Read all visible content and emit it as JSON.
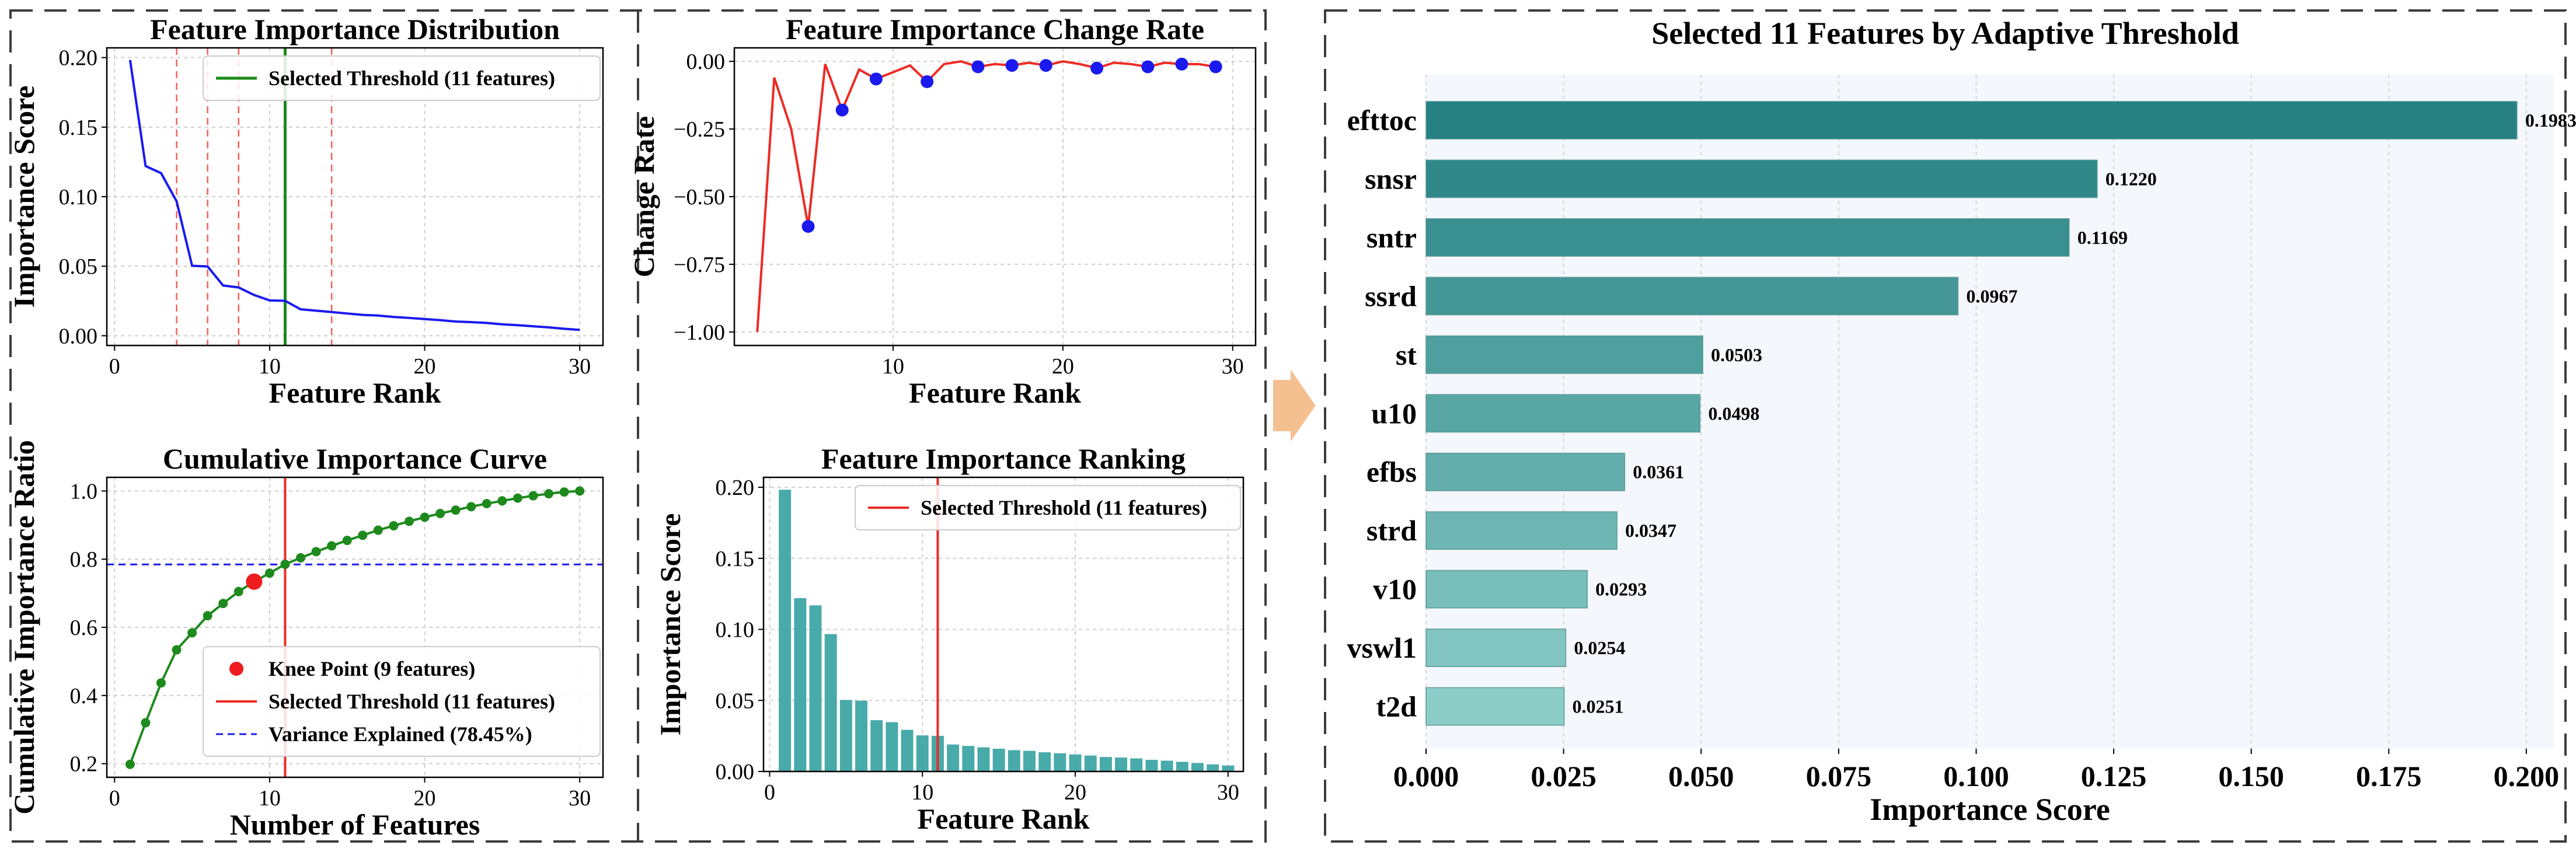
{
  "colors": {
    "panel_border": "#3c3c3c",
    "arrow": "#f5c08f",
    "threshold_green": "#1a8a1a",
    "threshold_red": "#ee2a24",
    "line_blue": "#1a1aee",
    "bar_teal": "#3aa3a3",
    "cum_green": "#1e8a1e",
    "knee_red": "#ee1c1c",
    "variance_blue": "#1a1aee",
    "panel_bg_right": "#f4f7fb"
  },
  "chart_data": [
    {
      "id": "dist",
      "type": "line",
      "title": "Feature Importance Distribution",
      "xlabel": "Feature Rank",
      "ylabel": "Importance Score",
      "xlim": [
        -0.5,
        31.5
      ],
      "ylim": [
        -0.007,
        0.207
      ],
      "xticks": [
        0,
        10,
        20,
        30
      ],
      "yticks": [
        0.0,
        0.05,
        0.1,
        0.15,
        0.2
      ],
      "ytick_labels": [
        "0.00",
        "0.05",
        "0.10",
        "0.15",
        "0.20"
      ],
      "grid": true,
      "legend": {
        "position": "top-right",
        "entries": [
          "Selected Threshold (11 features)"
        ]
      },
      "x": [
        1,
        2,
        3,
        4,
        5,
        6,
        7,
        8,
        9,
        10,
        11,
        12,
        13,
        14,
        15,
        16,
        17,
        18,
        19,
        20,
        21,
        22,
        23,
        24,
        25,
        26,
        27,
        28,
        29,
        30
      ],
      "values": [
        0.1983,
        0.122,
        0.1169,
        0.0967,
        0.0503,
        0.0498,
        0.0361,
        0.0347,
        0.0293,
        0.0254,
        0.0251,
        0.019,
        0.018,
        0.017,
        0.016,
        0.015,
        0.0145,
        0.0135,
        0.0128,
        0.012,
        0.0112,
        0.0102,
        0.0098,
        0.0092,
        0.0082,
        0.0076,
        0.0068,
        0.006,
        0.005,
        0.0042
      ],
      "dashed_verticals": [
        4,
        6,
        8,
        14
      ],
      "threshold": 11
    },
    {
      "id": "change",
      "type": "line",
      "title": "Feature Importance Change Rate",
      "xlabel": "Feature Rank",
      "ylabel": "Change Rate",
      "xlim": [
        0.65,
        31.35
      ],
      "ylim": [
        -1.05,
        0.05
      ],
      "xticks": [
        10,
        20,
        30
      ],
      "yticks": [
        -1.0,
        -0.75,
        -0.5,
        -0.25,
        0.0
      ],
      "ytick_labels": [
        "−1.00",
        "−0.75",
        "−0.50",
        "−0.25",
        "0.00"
      ],
      "grid": true,
      "x": [
        2,
        3,
        4,
        5,
        6,
        7,
        8,
        9,
        10,
        11,
        12,
        13,
        14,
        15,
        16,
        17,
        18,
        19,
        20,
        21,
        22,
        23,
        24,
        25,
        26,
        27,
        28,
        29
      ],
      "values": [
        -1.0,
        -0.06,
        -0.25,
        -0.61,
        -0.01,
        -0.18,
        -0.03,
        -0.065,
        -0.04,
        -0.015,
        -0.075,
        -0.01,
        0.0,
        -0.02,
        -0.01,
        -0.015,
        -0.005,
        -0.015,
        0.0,
        -0.01,
        -0.025,
        -0.005,
        -0.01,
        -0.02,
        -0.005,
        -0.01,
        -0.01,
        -0.02
      ],
      "marked_x": [
        5,
        7,
        9,
        12,
        15,
        17,
        19,
        22,
        25,
        27,
        29
      ]
    },
    {
      "id": "cumulative",
      "type": "line",
      "title": "Cumulative Importance Curve",
      "xlabel": "Number of Features",
      "ylabel": "Cumulative Importance Ratio",
      "xlim": [
        -0.5,
        31.5
      ],
      "ylim": [
        0.16,
        1.04
      ],
      "xticks": [
        0,
        10,
        20,
        30
      ],
      "yticks": [
        0.2,
        0.4,
        0.6,
        0.8,
        1.0
      ],
      "ytick_labels": [
        "0.2",
        "0.4",
        "0.6",
        "0.8",
        "1.0"
      ],
      "grid": true,
      "legend": {
        "position": "lower-right",
        "entries": [
          "Knee Point (9 features)",
          "Selected Threshold (11 features)",
          "Variance Explained (78.45%)"
        ]
      },
      "x": [
        1,
        2,
        3,
        4,
        5,
        6,
        7,
        8,
        9,
        10,
        11,
        12,
        13,
        14,
        15,
        16,
        17,
        18,
        19,
        20,
        21,
        22,
        23,
        24,
        25,
        26,
        27,
        28,
        29,
        30
      ],
      "values": [
        0.198,
        0.32,
        0.437,
        0.534,
        0.584,
        0.634,
        0.67,
        0.705,
        0.734,
        0.759,
        0.785,
        0.804,
        0.822,
        0.839,
        0.855,
        0.87,
        0.885,
        0.898,
        0.911,
        0.923,
        0.934,
        0.944,
        0.954,
        0.963,
        0.971,
        0.979,
        0.986,
        0.992,
        0.997,
        1.0
      ],
      "knee_point": {
        "x": 9,
        "y": 0.734
      },
      "threshold": 11,
      "variance_explained": 0.7845
    },
    {
      "id": "ranking",
      "type": "bar",
      "title": "Feature Importance Ranking",
      "xlabel": "Feature Rank",
      "ylabel": "Importance Score",
      "xlim": [
        -0.4,
        31.0
      ],
      "ylim": [
        0.0,
        0.207
      ],
      "xticks": [
        0,
        10,
        20,
        30
      ],
      "yticks": [
        0.0,
        0.05,
        0.1,
        0.15,
        0.2
      ],
      "ytick_labels": [
        "0.00",
        "0.05",
        "0.10",
        "0.15",
        "0.20"
      ],
      "grid": true,
      "legend": {
        "position": "top-right",
        "entries": [
          "Selected Threshold (11 features)"
        ]
      },
      "x": [
        1,
        2,
        3,
        4,
        5,
        6,
        7,
        8,
        9,
        10,
        11,
        12,
        13,
        14,
        15,
        16,
        17,
        18,
        19,
        20,
        21,
        22,
        23,
        24,
        25,
        26,
        27,
        28,
        29,
        30
      ],
      "values": [
        0.1983,
        0.122,
        0.1169,
        0.0967,
        0.0503,
        0.0498,
        0.0361,
        0.0347,
        0.0293,
        0.0254,
        0.0251,
        0.019,
        0.018,
        0.017,
        0.016,
        0.015,
        0.0145,
        0.0135,
        0.0128,
        0.012,
        0.0112,
        0.0102,
        0.0098,
        0.0092,
        0.0082,
        0.0076,
        0.0068,
        0.006,
        0.005,
        0.0042
      ],
      "threshold": 11
    },
    {
      "id": "selected",
      "type": "bar",
      "orientation": "horizontal",
      "title": "Selected 11 Features by Adaptive Threshold",
      "xlabel": "Importance Score",
      "ylabel": "",
      "xlim": [
        0.0,
        0.205
      ],
      "xticks": [
        0.0,
        0.025,
        0.05,
        0.075,
        0.1,
        0.125,
        0.15,
        0.175,
        0.2
      ],
      "xtick_labels": [
        "0.000",
        "0.025",
        "0.050",
        "0.075",
        "0.100",
        "0.125",
        "0.150",
        "0.175",
        "0.200"
      ],
      "grid": true,
      "categories": [
        "efttoc",
        "snsr",
        "sntr",
        "ssrd",
        "st",
        "u10",
        "efbs",
        "strd",
        "v10",
        "vswl1",
        "t2d"
      ],
      "values": [
        0.1983,
        0.122,
        0.1169,
        0.0967,
        0.0503,
        0.0498,
        0.0361,
        0.0347,
        0.0293,
        0.0254,
        0.0251
      ],
      "value_labels": [
        "0.1983",
        "0.1220",
        "0.1169",
        "0.0967",
        "0.0503",
        "0.0498",
        "0.0361",
        "0.0347",
        "0.0293",
        "0.0254",
        "0.0251"
      ]
    }
  ]
}
